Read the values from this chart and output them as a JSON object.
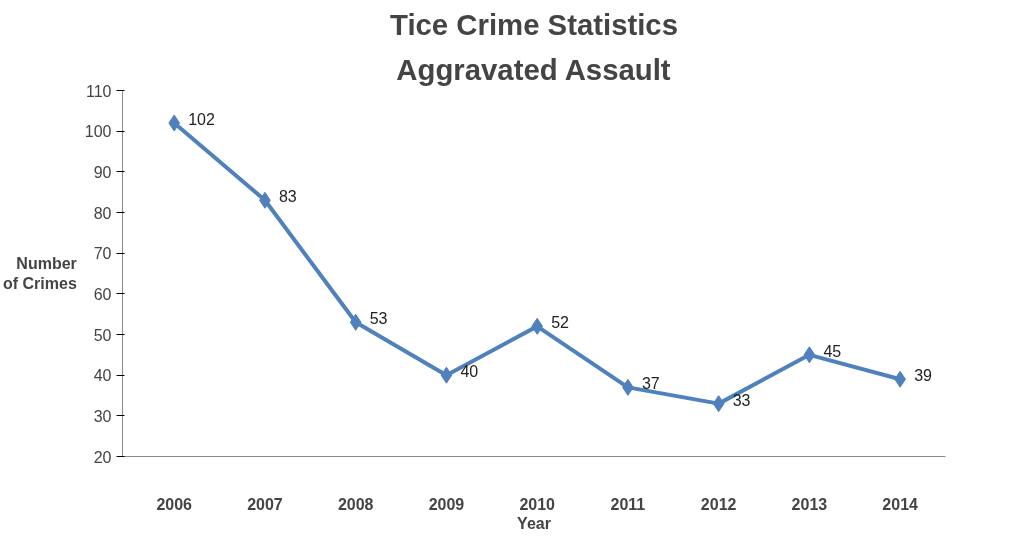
{
  "chart_data": {
    "type": "line",
    "title": "Tice Crime Statistics",
    "subtitle": "Aggravated Assault",
    "xlabel": "Year",
    "ylabel": "Number of Crimes",
    "categories": [
      "2006",
      "2007",
      "2008",
      "2009",
      "2010",
      "2011",
      "2012",
      "2013",
      "2014"
    ],
    "series": [
      {
        "color": "#4f81bd",
        "values": [
          102,
          83,
          53,
          40,
          52,
          37,
          33,
          45,
          39
        ]
      }
    ],
    "ylim": [
      20,
      110
    ],
    "yticks": [
      20,
      30,
      40,
      50,
      60,
      70,
      80,
      90,
      100,
      110
    ],
    "grid": false,
    "marker": "diamond",
    "line_style": "solid",
    "data_labels": true
  }
}
